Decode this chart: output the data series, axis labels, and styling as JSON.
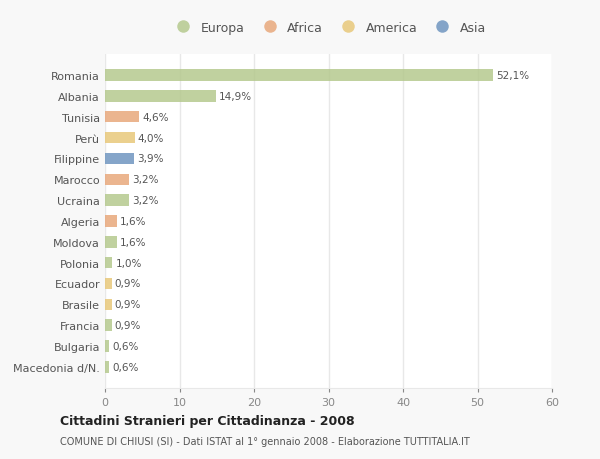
{
  "countries": [
    "Romania",
    "Albania",
    "Tunisia",
    "Perù",
    "Filippine",
    "Marocco",
    "Ucraina",
    "Algeria",
    "Moldova",
    "Polonia",
    "Ecuador",
    "Brasile",
    "Francia",
    "Bulgaria",
    "Macedonia d/N."
  ],
  "values": [
    52.1,
    14.9,
    4.6,
    4.0,
    3.9,
    3.2,
    3.2,
    1.6,
    1.6,
    1.0,
    0.9,
    0.9,
    0.9,
    0.6,
    0.6
  ],
  "labels": [
    "52,1%",
    "14,9%",
    "4,6%",
    "4,0%",
    "3,9%",
    "3,2%",
    "3,2%",
    "1,6%",
    "1,6%",
    "1,0%",
    "0,9%",
    "0,9%",
    "0,9%",
    "0,6%",
    "0,6%"
  ],
  "colors": [
    "#b5c98e",
    "#b5c98e",
    "#e8a87c",
    "#e8c87a",
    "#7096c0",
    "#e8a87c",
    "#b5c98e",
    "#e8a87c",
    "#b5c98e",
    "#b5c98e",
    "#e8c87a",
    "#e8c87a",
    "#b5c98e",
    "#b5c98e",
    "#b5c98e"
  ],
  "legend_labels": [
    "Europa",
    "Africa",
    "America",
    "Asia"
  ],
  "legend_colors": [
    "#b5c98e",
    "#e8a87c",
    "#e8c87a",
    "#7096c0"
  ],
  "title": "Cittadini Stranieri per Cittadinanza - 2008",
  "subtitle": "COMUNE DI CHIUSI (SI) - Dati ISTAT al 1° gennaio 2008 - Elaborazione TUTTITALIA.IT",
  "xlim": [
    0,
    60
  ],
  "xticks": [
    0,
    10,
    20,
    30,
    40,
    50,
    60
  ],
  "plot_bg_color": "#ffffff",
  "fig_bg_color": "#f8f8f8",
  "grid_color": "#e8e8e8",
  "bar_height": 0.55,
  "label_color": "#555555",
  "tick_color": "#888888"
}
